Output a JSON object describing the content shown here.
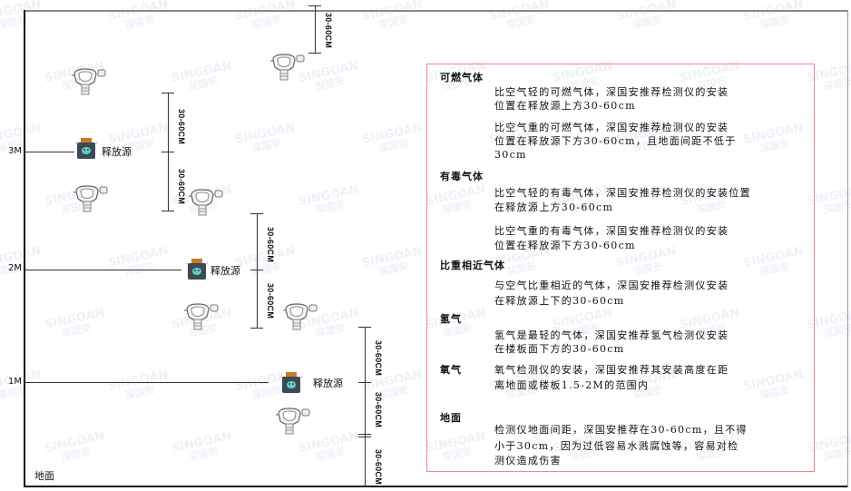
{
  "watermark": {
    "brand": "SINGOAN",
    "cn": "深国安"
  },
  "levels": [
    {
      "label": "3M"
    },
    {
      "label": "2M"
    },
    {
      "label": "1M"
    }
  ],
  "ground_label": "地面",
  "source_label": "释放源",
  "dimension_label": "30-60CM",
  "colors": {
    "panel_border": "#ee8888",
    "source_body": "#3d4a55",
    "source_cap": "#c87a2a",
    "source_face": "#5fd0c8"
  },
  "panel": {
    "sections": [
      {
        "title": "可燃气体",
        "paragraphs": [
          [
            "比空气轻的可燃气体，深国安推荐检测仪的安装",
            "位置在释放源上方30-60cm"
          ],
          [
            "比空气重的可燃气体，深国安推荐检测仪的安装",
            "位置在释放源下方30-60cm，且地面间距不低于",
            "30cm"
          ]
        ]
      },
      {
        "title": "有毒气体",
        "paragraphs": [
          [
            "比空气轻的有毒气体，深国安推荐检测仪的安装位置",
            "在释放源上方30-60cm"
          ],
          [
            "比空气重的有毒气体，深国安推荐检测仪的安装",
            "位置在释放源下方30-60cm"
          ]
        ]
      },
      {
        "title": "比重相近气体",
        "paragraphs": [
          [
            "与空气比重相近的气体，深国安推荐检测仪安装",
            "在释放源上下的30-60cm"
          ]
        ]
      },
      {
        "title": "氢气",
        "paragraphs": [
          [
            "氢气是最轻的气体，深国安推荐氢气检测仪安装",
            "在楼板面下方的30-60cm"
          ]
        ]
      },
      {
        "title": "氧气",
        "paragraphs": [
          [
            "氧气检测仪的安装，深国安推荐其安装高度在距",
            "离地面或楼板1.5-2M的范围内"
          ]
        ]
      },
      {
        "title": "地面",
        "paragraphs": [
          [
            "检测仪地面间距，深国安推荐在30-60cm，且不得",
            "小于30cm，因为过低容易水溅腐蚀等，容易对检",
            "测仪造成伤害"
          ]
        ]
      }
    ]
  }
}
